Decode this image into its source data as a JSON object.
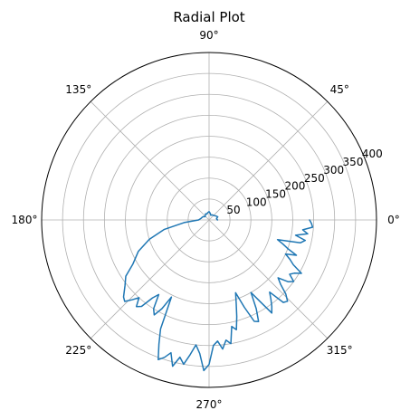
{
  "chart_data": {
    "type": "line",
    "projection": "polar",
    "title": "Radial Plot",
    "rlim": [
      0,
      400
    ],
    "radial_ticks": [
      "50",
      "100",
      "150",
      "200",
      "250",
      "300",
      "350",
      "400"
    ],
    "radial_tick_values": [
      50,
      100,
      150,
      200,
      250,
      300,
      350,
      400
    ],
    "angle_ticks": [
      "0°",
      "45°",
      "90°",
      "135°",
      "180°",
      "225°",
      "270°",
      "315°"
    ],
    "angle_tick_values": [
      0,
      45,
      90,
      135,
      180,
      225,
      270,
      315
    ],
    "grid": true,
    "series": [
      {
        "color": "#1f77b4",
        "theta_deg": [
          0,
          10,
          20,
          30,
          40,
          50,
          60,
          70,
          80,
          90,
          100,
          110,
          120,
          130,
          140,
          150,
          160,
          170,
          180,
          186,
          192,
          198,
          204,
          210,
          214,
          218,
          222,
          224,
          226,
          228,
          230,
          232,
          234,
          236,
          238,
          240,
          242,
          244,
          246,
          248,
          250,
          252,
          254,
          256,
          258,
          260,
          262,
          264,
          266,
          268,
          270,
          272,
          274,
          276,
          278,
          280,
          282,
          284,
          286,
          288,
          290,
          292,
          294,
          296,
          298,
          300,
          302,
          304,
          306,
          308,
          310,
          312,
          314,
          316,
          318,
          320,
          322,
          324,
          326,
          328,
          330,
          332,
          334,
          336,
          338,
          340,
          342,
          344,
          346,
          348,
          350,
          352,
          354,
          356,
          358,
          360
        ],
        "r": [
          20,
          18,
          22,
          19,
          16,
          15,
          14,
          12,
          16,
          20,
          18,
          15,
          17,
          14,
          12,
          16,
          18,
          20,
          25,
          60,
          110,
          150,
          185,
          210,
          240,
          255,
          275,
          280,
          265,
          250,
          270,
          262,
          230,
          215,
          250,
          262,
          240,
          205,
          285,
          320,
          355,
          345,
          330,
          360,
          335,
          350,
          325,
          300,
          320,
          360,
          345,
          300,
          290,
          310,
          290,
          300,
          260,
          270,
          240,
          210,
          185,
          225,
          265,
          270,
          240,
          200,
          230,
          268,
          255,
          240,
          225,
          265,
          270,
          255,
          230,
          215,
          240,
          250,
          232,
          240,
          255,
          228,
          215,
          200,
          225,
          200,
          185,
          170,
          225,
          235,
          210,
          238,
          225,
          248,
          245,
          240
        ]
      }
    ]
  }
}
